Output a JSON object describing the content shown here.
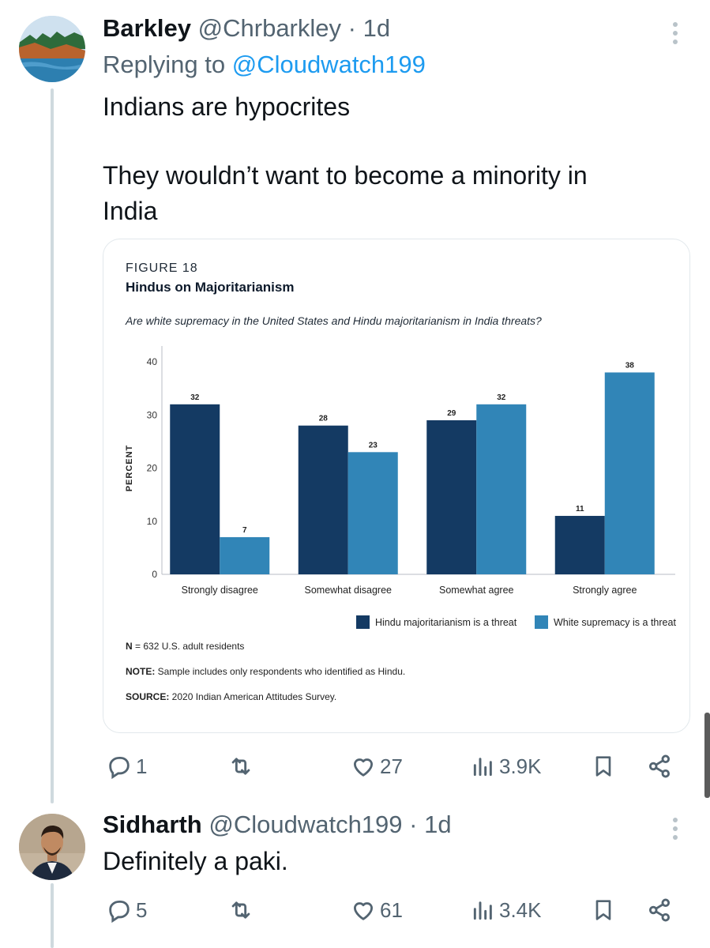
{
  "tweet1": {
    "name": "Barkley",
    "handle": "@Chrbarkley",
    "time": "· 1d",
    "replying_prefix": "Replying to",
    "replying_to": "@Cloudwatch199",
    "text_line1": "Indians are hypocrites",
    "text_line2": "They wouldn’t want to become a minority in",
    "text_line3": "India",
    "actions": {
      "replies": "1",
      "retweets": "",
      "likes": "27",
      "views": "3.9K"
    }
  },
  "tweet2": {
    "name": "Sidharth",
    "handle": "@Cloudwatch199",
    "time": "· 1d",
    "text": "Definitely a paki.",
    "actions": {
      "replies": "5",
      "retweets": "",
      "likes": "61",
      "views": "3.4K"
    }
  },
  "figure": {
    "label": "FIGURE 18",
    "title": "Hindus on Majoritarianism",
    "subtitle": "Are white supremacy in the United States and Hindu majoritarianism in India threats?",
    "n_label": "N",
    "n_text": " = 632 U.S. adult residents",
    "note_label": "NOTE:",
    "note_text": " Sample includes only respondents who identified as Hindu.",
    "source_label": "SOURCE:",
    "source_text": " 2020 Indian American Attitudes Survey."
  },
  "chart_data": {
    "type": "bar",
    "title": "Hindus on Majoritarianism",
    "ylabel": "PERCENT",
    "ylim": [
      0,
      40
    ],
    "yticks": [
      0,
      10,
      20,
      30,
      40
    ],
    "categories": [
      "Strongly disagree",
      "Somewhat disagree",
      "Somewhat agree",
      "Strongly agree"
    ],
    "series": [
      {
        "name": "Hindu majoritarianism is a threat",
        "color": "#143a63",
        "values": [
          32,
          28,
          29,
          11
        ]
      },
      {
        "name": "White supremacy is a threat",
        "color": "#3185b7",
        "values": [
          7,
          23,
          32,
          38
        ]
      }
    ],
    "legend": "bottom-right",
    "grid": false
  },
  "colors": {
    "link": "#1d9bf0",
    "secondary_text": "#536471",
    "thread_line": "#cfd9de"
  }
}
